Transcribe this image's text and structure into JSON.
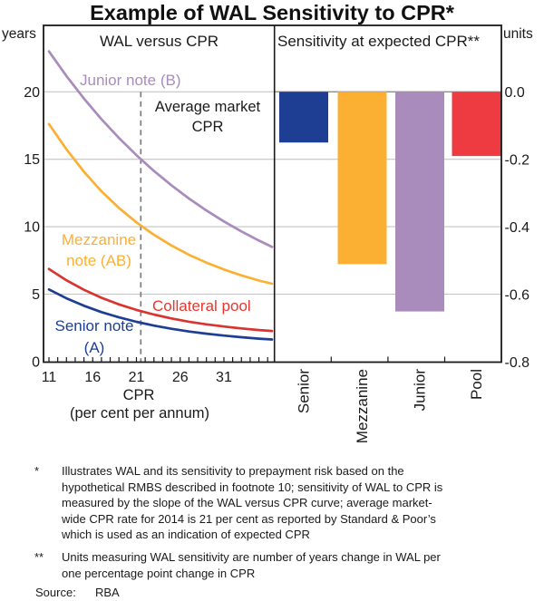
{
  "title": "Example of WAL Sensitivity to CPR*",
  "axes": {
    "left_unit": "years",
    "right_unit": "units"
  },
  "panels": {
    "left_title": "WAL versus CPR",
    "right_title": "Sensitivity at expected CPR**"
  },
  "labels": {
    "junior": "Junior note (B)",
    "avg1": "Average market",
    "avg2": "CPR",
    "mezz1": "Mezzanine",
    "mezz2": "note (AB)",
    "collateral": "Collateral pool",
    "senior1": "Senior note",
    "senior2": "(A)",
    "xlabel": "CPR",
    "xunit": "(per cent per annum)"
  },
  "colors": {
    "senior_blue": "#1e3e94",
    "mezzanine_orange": "#fbb034",
    "junior_purple": "#a98bbc",
    "pool_red_line": "#d93530",
    "pool_red_bar": "#ee3b42",
    "gridline": "#c4c4c4",
    "zero_line": "#8f8f8f",
    "axis": "#1a1a1a",
    "dashed_line": "#7d7d7d"
  },
  "chart_data": [
    {
      "type": "line",
      "title": "WAL versus CPR",
      "xlabel": "CPR (per cent per annum)",
      "ylabel": "years",
      "xlim": [
        10.4,
        36.8
      ],
      "ylim": [
        0,
        25
      ],
      "x_ticks": [
        11,
        16,
        21,
        26,
        31
      ],
      "x_tick_labels": [
        "11",
        "16",
        "21",
        "26",
        "31"
      ],
      "minor_x_tick_step": 1,
      "y_ticks": [
        0,
        5,
        10,
        15,
        20
      ],
      "y_tick_labels": [
        "0",
        "5",
        "10",
        "15",
        "20"
      ],
      "grid": true,
      "annotation": {
        "label": "Average market CPR",
        "x": 21.5,
        "style": "vertical-dashed"
      },
      "x": [
        11,
        13,
        15,
        17,
        19,
        21,
        23,
        25,
        27,
        29,
        31,
        33,
        35,
        36.5
      ],
      "series": [
        {
          "name": "Junior note (B)",
          "color": "#a98bbc",
          "y": [
            23.0,
            21.17,
            19.5,
            17.97,
            16.58,
            15.3,
            14.13,
            13.07,
            12.09,
            11.2,
            10.39,
            9.65,
            8.97,
            8.5
          ]
        },
        {
          "name": "Mezzanine note (AB)",
          "color": "#fbb034",
          "y": [
            17.61,
            15.74,
            14.07,
            12.63,
            11.39,
            10.32,
            9.4,
            8.61,
            7.92,
            7.34,
            6.83,
            6.39,
            6.01,
            5.77
          ]
        },
        {
          "name": "Collateral pool",
          "color": "#d93530",
          "y": [
            6.87,
            6.03,
            5.32,
            4.73,
            4.24,
            3.83,
            3.49,
            3.2,
            2.96,
            2.76,
            2.6,
            2.46,
            2.34,
            2.27
          ]
        },
        {
          "name": "Senior note (A)",
          "color": "#1e3e94",
          "y": [
            5.35,
            4.69,
            4.14,
            3.67,
            3.28,
            2.95,
            2.67,
            2.43,
            2.23,
            2.07,
            1.93,
            1.81,
            1.7,
            1.64
          ]
        }
      ]
    },
    {
      "type": "bar",
      "title": "Sensitivity at expected CPR**",
      "ylabel": "units",
      "ylim": [
        -0.8,
        0
      ],
      "y_ticks": [
        0,
        -0.2,
        -0.4,
        -0.6,
        -0.8
      ],
      "y_tick_labels": [
        "0.0",
        "-0.2",
        "-0.4",
        "-0.6",
        "-0.8"
      ],
      "categories": [
        "Senior",
        "Mezzanine",
        "Junior",
        "Pool"
      ],
      "values": [
        -0.15,
        -0.51,
        -0.65,
        -0.19
      ],
      "bar_colors": [
        "#1e3e94",
        "#fbb034",
        "#a98bbc",
        "#ee3b42"
      ]
    }
  ],
  "footnotes": [
    {
      "marker": "*",
      "text": "Illustrates WAL and its sensitivity to prepayment risk based on the hypothetical RMBS described in footnote 10; sensitivity of WAL to CPR is measured by the slope of the WAL versus CPR curve; average market-wide CPR rate for 2014 is 21 per cent as reported by Standard & Poor’s which is used as an indication of expected CPR"
    },
    {
      "marker": "**",
      "text": "Units measuring WAL sensitivity are number of years change in WAL per one percentage point change in CPR"
    }
  ],
  "source": {
    "label": "Source:",
    "value": "RBA"
  }
}
